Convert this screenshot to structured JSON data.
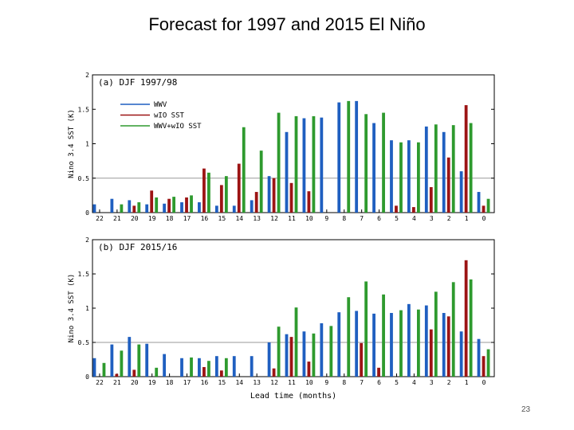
{
  "slide": {
    "title": "Forecast for 1997 and 2015 El Niño",
    "number": "23"
  },
  "colors": {
    "wwv": "#1f5fc0",
    "wio_sst": "#9c1414",
    "wwv_wio": "#2e9a2e",
    "refline": "#999999"
  },
  "chart_data": [
    {
      "type": "bar",
      "title": "(a) DJF 1997/98",
      "ylabel": "Nino 3.4 SST (K)",
      "xlabel": "",
      "ylim": [
        0,
        2
      ],
      "yticks": [
        "0",
        "0.5",
        "1",
        "1.5",
        "2"
      ],
      "reference_line": 0.5,
      "legend_position": "top-left",
      "categories": [
        "22",
        "21",
        "20",
        "19",
        "18",
        "17",
        "16",
        "15",
        "14",
        "13",
        "12",
        "11",
        "10",
        "9",
        "8",
        "7",
        "6",
        "5",
        "4",
        "3",
        "2",
        "1",
        "0"
      ],
      "series": [
        {
          "name": "WWV",
          "values": [
            0.12,
            0.2,
            0.18,
            0.12,
            0.13,
            0.15,
            0.15,
            0.1,
            0.1,
            0.18,
            0.53,
            1.17,
            1.37,
            1.38,
            1.6,
            1.62,
            1.3,
            1.05,
            1.05,
            1.25,
            1.17,
            0.6,
            0.3
          ]
        },
        {
          "name": "wIO SST",
          "values": [
            0,
            0,
            0.1,
            0.32,
            0.2,
            0.22,
            0.64,
            0.4,
            0.71,
            0.3,
            0.5,
            0.43,
            0.31,
            0,
            0,
            0,
            0,
            0.1,
            0.08,
            0.37,
            0.8,
            1.56,
            0.1
          ]
        },
        {
          "name": "WWV+wIO SST",
          "values": [
            0,
            0.12,
            0.15,
            0.22,
            0.23,
            0.25,
            0.58,
            0.53,
            1.24,
            0.9,
            1.45,
            1.4,
            1.4,
            0,
            1.62,
            1.43,
            1.45,
            1.02,
            1.02,
            1.28,
            1.27,
            1.3,
            0.2
          ]
        }
      ]
    },
    {
      "type": "bar",
      "title": "(b) DJF 2015/16",
      "ylabel": "Nino 3.4 SST (K)",
      "xlabel": "Lead time (months)",
      "ylim": [
        0,
        2
      ],
      "yticks": [
        "0",
        "0.5",
        "1",
        "1.5",
        "2"
      ],
      "reference_line": 0.5,
      "categories": [
        "22",
        "21",
        "20",
        "19",
        "18",
        "17",
        "16",
        "15",
        "14",
        "13",
        "12",
        "11",
        "10",
        "9",
        "8",
        "7",
        "6",
        "5",
        "4",
        "3",
        "2",
        "1",
        "0"
      ],
      "series": [
        {
          "name": "WWV",
          "values": [
            0.27,
            0.47,
            0.58,
            0.48,
            0.33,
            0.27,
            0.27,
            0.3,
            0.3,
            0.3,
            0.5,
            0.62,
            0.66,
            0.78,
            0.94,
            0.96,
            0.92,
            0.93,
            1.06,
            1.04,
            0.93,
            0.66,
            0.55
          ]
        },
        {
          "name": "wIO SST",
          "values": [
            0,
            0.04,
            0.1,
            0,
            0,
            0,
            0.14,
            0.09,
            0,
            0,
            0.12,
            0.58,
            0.22,
            0,
            0,
            0.49,
            0.13,
            0,
            0,
            0.69,
            0.88,
            1.7,
            0.3
          ]
        },
        {
          "name": "WWV+wIO SST",
          "values": [
            0.2,
            0.38,
            0.47,
            0.13,
            0,
            0.28,
            0.23,
            0.27,
            0,
            0,
            0.73,
            1.01,
            0.63,
            0.74,
            1.16,
            1.39,
            1.2,
            0.97,
            0.98,
            1.24,
            1.38,
            1.42,
            0.4
          ]
        }
      ]
    }
  ]
}
